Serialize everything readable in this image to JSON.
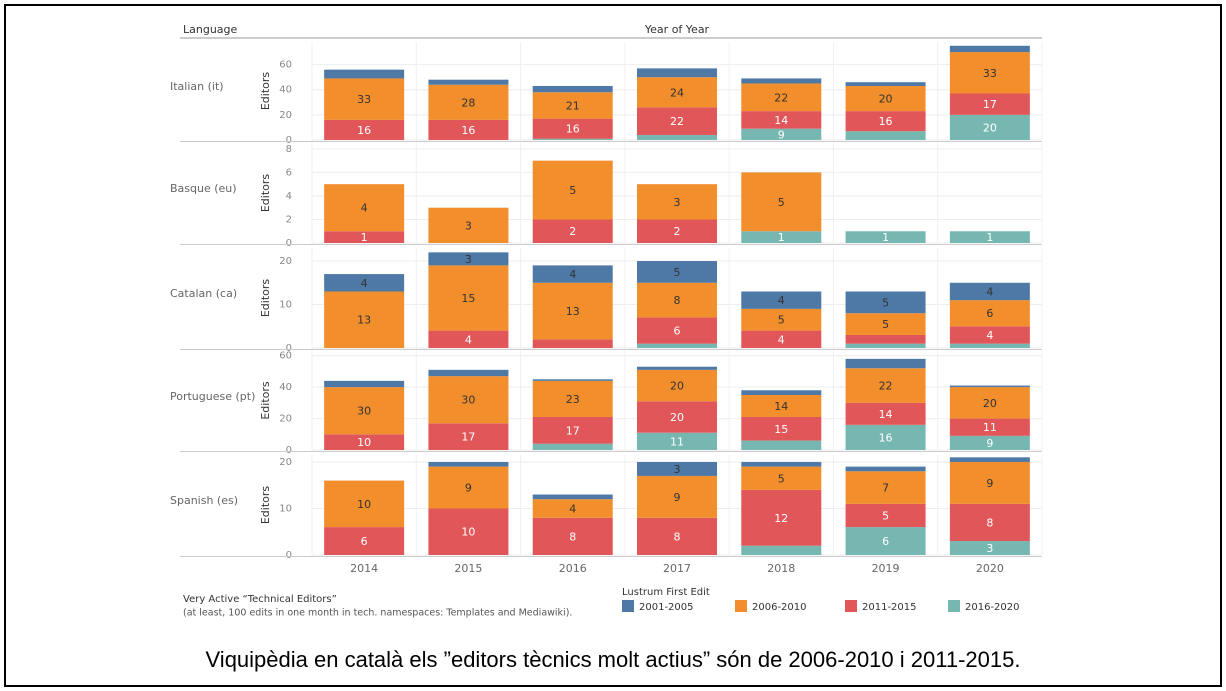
{
  "chart_data": {
    "type": "bar",
    "stacked": true,
    "row_header": "Language",
    "title": "Year of Year",
    "y_label": "Editors",
    "categories": [
      "2014",
      "2015",
      "2016",
      "2017",
      "2018",
      "2019",
      "2020"
    ],
    "legend_title": "Lustrum First Edit",
    "series": [
      {
        "name": "2001-2005",
        "color": "#4e79a7"
      },
      {
        "name": "2006-2010",
        "color": "#f28e2b"
      },
      {
        "name": "2011-2015",
        "color": "#e15759"
      },
      {
        "name": "2016-2020",
        "color": "#76b7b2"
      }
    ],
    "panels": [
      {
        "label": "Italian (it)",
        "ylim": [
          0,
          78
        ],
        "yticks": [
          0,
          20,
          40,
          60
        ],
        "values": [
          [
            7,
            4,
            5,
            7,
            4,
            3,
            5
          ],
          [
            33,
            28,
            21,
            24,
            22,
            20,
            33
          ],
          [
            16,
            16,
            16,
            22,
            14,
            16,
            17
          ],
          [
            0,
            0,
            1,
            4,
            9,
            7,
            20
          ]
        ]
      },
      {
        "label": "Basque (eu)",
        "ylim": [
          0,
          8.5
        ],
        "yticks": [
          0,
          2,
          4,
          6,
          8
        ],
        "values": [
          [
            0,
            0,
            0,
            0,
            0,
            0,
            0
          ],
          [
            4,
            3,
            5,
            3,
            5,
            0,
            0
          ],
          [
            1,
            0,
            2,
            2,
            0,
            0,
            0
          ],
          [
            0,
            0,
            0,
            0,
            1,
            1,
            1
          ]
        ]
      },
      {
        "label": "Catalan (ca)",
        "ylim": [
          0,
          23
        ],
        "yticks": [
          0,
          10,
          20
        ],
        "values": [
          [
            4,
            3,
            4,
            5,
            4,
            5,
            4
          ],
          [
            13,
            15,
            13,
            8,
            5,
            5,
            6
          ],
          [
            0,
            4,
            2,
            6,
            4,
            2,
            4
          ],
          [
            0,
            0,
            0,
            1,
            0,
            1,
            1
          ]
        ]
      },
      {
        "label": "Portuguese (pt)",
        "ylim": [
          0,
          63
        ],
        "yticks": [
          0,
          20,
          40,
          60
        ],
        "values": [
          [
            4,
            4,
            1,
            2,
            3,
            6,
            1
          ],
          [
            30,
            30,
            23,
            20,
            14,
            22,
            20
          ],
          [
            10,
            17,
            17,
            20,
            15,
            14,
            11
          ],
          [
            0,
            0,
            4,
            11,
            6,
            16,
            9
          ]
        ]
      },
      {
        "label": "Spanish (es)",
        "ylim": [
          0,
          21.5
        ],
        "yticks": [
          0,
          10,
          20
        ],
        "values": [
          [
            0,
            1,
            1,
            3,
            1,
            1,
            1
          ],
          [
            10,
            9,
            4,
            9,
            5,
            7,
            9
          ],
          [
            6,
            10,
            8,
            8,
            12,
            5,
            8
          ],
          [
            0,
            0,
            0,
            0,
            2,
            6,
            3
          ]
        ]
      }
    ],
    "notes": [
      "Very Active “Technical Editors”",
      "(at least, 100 edits in one month in tech. namespaces: Templates and Mediawiki)."
    ],
    "caption": "Viquipèdia en català els ”editors tècnics molt actius” són de 2006-2010 i 2011-2015."
  }
}
